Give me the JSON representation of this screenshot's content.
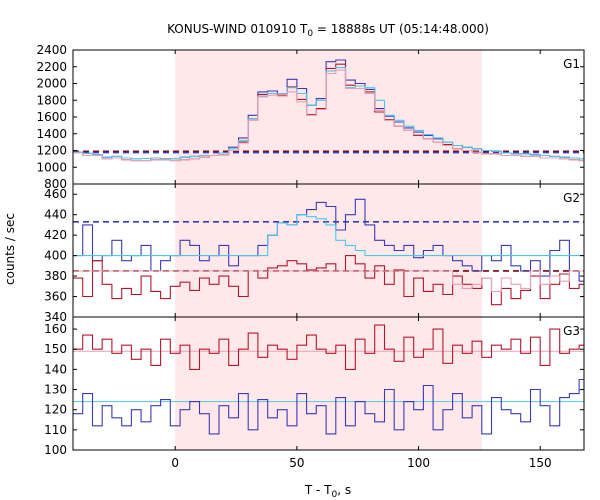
{
  "title": {
    "pre": "KONUS-WIND 010910 T",
    "sub": "0",
    "post": " = 18888s UT (05:14:48.000)"
  },
  "xlabel": {
    "pre": "T - T",
    "sub": "0",
    "post": ", s"
  },
  "ylabel": "counts / sec",
  "colors": {
    "red": "#b2182b",
    "blue": "#3a3ab8",
    "cyan": "#4dc6e8",
    "pink": "#e8a0b4",
    "shade": "#ffe8ea",
    "darkred": "#7a0010"
  },
  "chart_data": [
    {
      "type": "line",
      "panel": "G1",
      "xlim": [
        -42,
        168
      ],
      "ylim": [
        800,
        2400
      ],
      "yticks": [
        800,
        1000,
        1200,
        1400,
        1600,
        1800,
        2000,
        2200,
        2400
      ],
      "xticks": [
        0,
        50,
        100,
        150
      ],
      "shaded_interval": [
        0,
        126
      ],
      "bin_width": 4,
      "x_start": -42,
      "background_levels": [
        {
          "series": "red",
          "value": 1190,
          "style": "dashed"
        },
        {
          "series": "blue",
          "value": 1175,
          "style": "dashed"
        }
      ],
      "series": [
        {
          "color": "blue",
          "values": [
            1180,
            1165,
            1150,
            1120,
            1130,
            1110,
            1100,
            1105,
            1110,
            1105,
            1100,
            1120,
            1130,
            1140,
            1140,
            1170,
            1240,
            1350,
            1620,
            1900,
            1910,
            1880,
            2050,
            1940,
            1740,
            1820,
            2260,
            2280,
            2040,
            2000,
            1930,
            1700,
            1610,
            1540,
            1470,
            1420,
            1380,
            1340,
            1300,
            1260,
            1240,
            1220,
            1200,
            1190,
            1170,
            1160,
            1160,
            1150,
            1140,
            1130,
            1120,
            1110,
            1100,
            1090,
            1100,
            1110,
            1100,
            1090,
            1100,
            1100,
            1100,
            1090
          ]
        },
        {
          "color": "red",
          "values": [
            1170,
            1140,
            1140,
            1100,
            1110,
            1090,
            1080,
            1080,
            1090,
            1090,
            1080,
            1090,
            1100,
            1120,
            1140,
            1150,
            1200,
            1300,
            1580,
            1870,
            1880,
            1860,
            1960,
            1810,
            1630,
            1700,
            2180,
            2230,
            1980,
            1970,
            1900,
            1660,
            1570,
            1490,
            1440,
            1380,
            1340,
            1300,
            1270,
            1220,
            1200,
            1180,
            1160,
            1160,
            1140,
            1140,
            1130,
            1130,
            1110,
            1110,
            1100,
            1090,
            1080,
            1070,
            1080,
            1090,
            1080,
            1060,
            1070,
            1070,
            1060,
            1050
          ]
        },
        {
          "color": "cyan",
          "values": [
            1180,
            1165,
            1150,
            1120,
            1130,
            1110,
            1100,
            1105,
            1110,
            1105,
            1100,
            1120,
            1130,
            1140,
            1140,
            1170,
            1220,
            1320,
            1580,
            1850,
            1880,
            1880,
            1950,
            1880,
            1740,
            1800,
            2150,
            2190,
            1950,
            1970,
            1950,
            1800,
            1620,
            1560,
            1490,
            1440,
            1390,
            1350,
            1300,
            1260,
            1240,
            1220,
            1200,
            1190,
            1170,
            1160,
            1160,
            1150,
            1140,
            1130,
            1120,
            1110,
            1100,
            1090,
            1100,
            1110,
            1100,
            1090,
            1100,
            1100,
            1100,
            1090
          ]
        },
        {
          "color": "pink",
          "values": [
            1170,
            1140,
            1140,
            1100,
            1110,
            1090,
            1080,
            1080,
            1090,
            1090,
            1080,
            1090,
            1100,
            1120,
            1140,
            1150,
            1200,
            1290,
            1560,
            1840,
            1860,
            1850,
            1900,
            1780,
            1620,
            1690,
            2120,
            2160,
            1940,
            1940,
            1880,
            1680,
            1560,
            1490,
            1440,
            1390,
            1340,
            1300,
            1260,
            1220,
            1200,
            1180,
            1160,
            1160,
            1140,
            1140,
            1130,
            1130,
            1110,
            1110,
            1100,
            1090,
            1080,
            1070,
            1080,
            1090,
            1080,
            1060,
            1070,
            1070,
            1060,
            1050
          ]
        }
      ],
      "panel_label": "G1"
    },
    {
      "type": "line",
      "panel": "G2",
      "xlim": [
        -42,
        168
      ],
      "ylim": [
        340,
        470
      ],
      "yticks": [
        340,
        360,
        380,
        400,
        420,
        440,
        460
      ],
      "shaded_interval": [
        0,
        126
      ],
      "bin_width": 4,
      "x_start": -42,
      "background_levels": [
        {
          "series": "blue",
          "value": 433,
          "style": "dashed"
        },
        {
          "series": "red",
          "value": 385,
          "style": "dashed"
        }
      ],
      "series": [
        {
          "color": "blue",
          "values": [
            400,
            430,
            395,
            400,
            415,
            395,
            400,
            410,
            385,
            395,
            400,
            415,
            410,
            395,
            400,
            410,
            390,
            400,
            400,
            410,
            420,
            432,
            430,
            440,
            445,
            452,
            448,
            425,
            440,
            455,
            430,
            415,
            410,
            405,
            410,
            398,
            405,
            410,
            400,
            395,
            390,
            385,
            400,
            395,
            410,
            390,
            385,
            395,
            380,
            405,
            415,
            385,
            375,
            395,
            380,
            410,
            385,
            400,
            375,
            390,
            385,
            380
          ]
        },
        {
          "color": "red",
          "values": [
            378,
            360,
            395,
            372,
            358,
            368,
            362,
            380,
            365,
            358,
            370,
            374,
            366,
            378,
            372,
            380,
            370,
            360,
            385,
            378,
            388,
            390,
            395,
            392,
            386,
            388,
            392,
            385,
            400,
            392,
            378,
            390,
            372,
            386,
            360,
            378,
            365,
            372,
            362,
            380,
            372,
            368,
            378,
            352,
            368,
            358,
            366,
            380,
            358,
            372,
            382,
            368,
            372,
            378,
            365,
            378,
            372,
            368,
            385,
            372,
            380,
            375
          ]
        },
        {
          "color": "cyan",
          "values": [
            400,
            400,
            400,
            400,
            400,
            400,
            400,
            400,
            400,
            400,
            400,
            400,
            400,
            400,
            400,
            400,
            400,
            400,
            400,
            400,
            420,
            432,
            430,
            440,
            438,
            436,
            430,
            415,
            410,
            405,
            400,
            400,
            400,
            400,
            400,
            400,
            400,
            400,
            400,
            400,
            400,
            400,
            400,
            400,
            400,
            400,
            400,
            400,
            400,
            400,
            400,
            400,
            400,
            400,
            400,
            400,
            400,
            400,
            400,
            400,
            400,
            400
          ]
        },
        {
          "color": "pink",
          "values": [
            385,
            385,
            385,
            385,
            385,
            385,
            385,
            385,
            385,
            385,
            385,
            385,
            385,
            385,
            385,
            385,
            385,
            385,
            385,
            385,
            385,
            385,
            385,
            385,
            385,
            385,
            385,
            385,
            385,
            385,
            385,
            385,
            385,
            385,
            385,
            385,
            385,
            385,
            385,
            372,
            368,
            372,
            378,
            365,
            378,
            372,
            368,
            385,
            372,
            380,
            375,
            385,
            385,
            385,
            385,
            385,
            385,
            385,
            385,
            385,
            385,
            385
          ]
        }
      ],
      "panel_label": "G2"
    },
    {
      "type": "line",
      "panel": "G3",
      "xlim": [
        -42,
        168
      ],
      "ylim": [
        100,
        166
      ],
      "yticks": [
        100,
        110,
        120,
        130,
        140,
        150,
        160
      ],
      "xticks": [
        0,
        50,
        100,
        150
      ],
      "shaded_interval": [
        0,
        126
      ],
      "bin_width": 4,
      "x_start": -42,
      "background_levels": [
        {
          "series": "pink",
          "value": 149,
          "style": "solid"
        },
        {
          "series": "cyan",
          "value": 124,
          "style": "solid"
        }
      ],
      "series": [
        {
          "color": "red",
          "values": [
            150,
            157,
            150,
            155,
            148,
            152,
            145,
            150,
            142,
            155,
            148,
            152,
            140,
            150,
            148,
            155,
            142,
            150,
            158,
            146,
            152,
            150,
            145,
            152,
            157,
            150,
            148,
            152,
            140,
            155,
            148,
            162,
            150,
            144,
            156,
            146,
            150,
            160,
            143,
            152,
            148,
            154,
            146,
            152,
            150,
            155,
            148,
            156,
            142,
            160,
            148,
            150,
            152,
            146,
            150,
            148,
            151,
            150,
            144,
            158,
            150,
            162
          ]
        },
        {
          "color": "blue",
          "values": [
            118,
            128,
            112,
            122,
            116,
            112,
            120,
            114,
            122,
            125,
            112,
            120,
            124,
            118,
            108,
            122,
            116,
            128,
            110,
            125,
            116,
            120,
            112,
            128,
            118,
            122,
            108,
            126,
            112,
            124,
            118,
            114,
            130,
            110,
            124,
            120,
            132,
            110,
            120,
            128,
            116,
            122,
            108,
            126,
            120,
            118,
            114,
            130,
            122,
            112,
            126,
            128,
            135,
            110,
            122,
            130,
            128,
            116,
            132,
            124,
            118,
            140
          ]
        }
      ],
      "panel_label": "G3"
    }
  ]
}
